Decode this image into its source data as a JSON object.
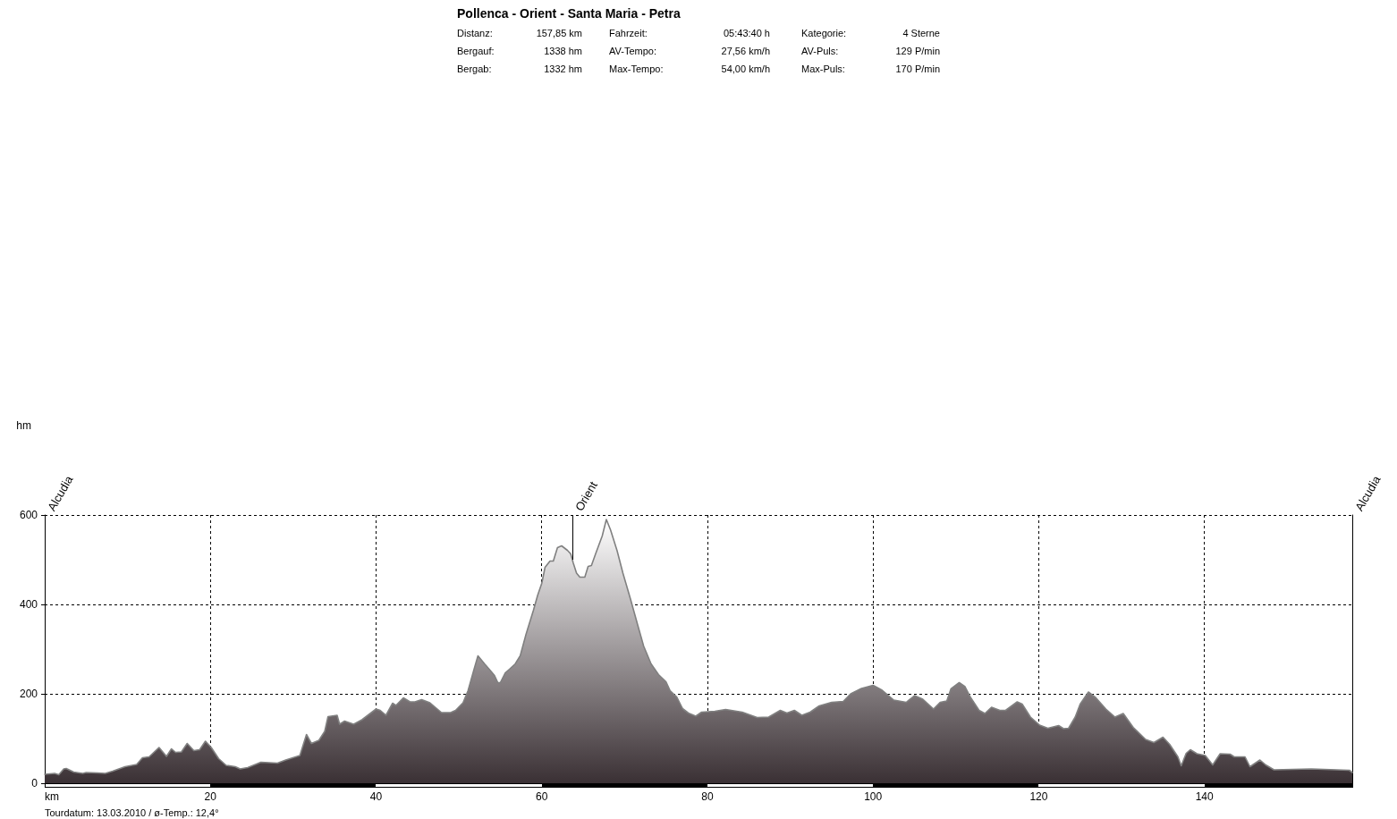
{
  "chart_data": {
    "type": "area",
    "title": "Pollenca - Orient - Santa Maria - Petra",
    "xlabel": "km",
    "x": [
      0,
      1.2,
      1.7,
      2.3,
      2.6,
      3.5,
      4.6,
      5.0,
      6.4,
      7.3,
      8.2,
      9.7,
      11.1,
      11.8,
      12.6,
      13.8,
      14.7,
      15.3,
      15.8,
      16.5,
      17.2,
      18.0,
      18.7,
      19.4,
      20.1,
      21.0,
      21.9,
      23.0,
      23.6,
      24.5,
      26.1,
      28.1,
      29.1,
      30.8,
      31.6,
      32.2,
      33.1,
      33.8,
      34.2,
      35.3,
      35.6,
      36.2,
      37.3,
      38.3,
      40.0,
      40.5,
      41.2,
      42.0,
      42.4,
      43.3,
      44.1,
      44.7,
      45.5,
      46.5,
      47.9,
      49.0,
      49.6,
      50.5,
      51.1,
      51.8,
      52.3,
      53.1,
      53.8,
      54.3,
      54.7,
      55.0,
      55.6,
      56.1,
      56.8,
      57.4,
      58.1,
      59.0,
      59.5,
      60.0,
      60.4,
      61.0,
      61.4,
      61.9,
      62.4,
      63.1,
      63.5,
      63.8,
      64.2,
      64.6,
      65.2,
      65.6,
      66.0,
      66.5,
      67.3,
      67.8,
      68.3,
      69.1,
      69.8,
      70.7,
      71.6,
      72.3,
      73.2,
      74.1,
      75.0,
      75.5,
      76.3,
      77.0,
      77.7,
      78.6,
      79.3,
      80.9,
      82.2,
      84.2,
      86.0,
      87.4,
      88.8,
      89.6,
      90.5,
      91.4,
      92.4,
      93.5,
      95.0,
      96.4,
      97.3,
      98.6,
      100.0,
      101.1,
      102.5,
      104.0,
      105.0,
      106.0,
      107.3,
      108.1,
      108.9,
      109.4,
      110.4,
      111.1,
      111.8,
      112.8,
      113.5,
      114.3,
      115.3,
      116.0,
      117.4,
      118.0,
      119.0,
      120.1,
      121.1,
      122.4,
      123.0,
      123.6,
      124.4,
      125.0,
      126.0,
      126.9,
      128.1,
      129.2,
      130.2,
      131.4,
      132.9,
      133.9,
      135.0,
      135.8,
      136.8,
      137.2,
      137.8,
      138.3,
      139.1,
      140.1,
      141.0,
      141.9,
      143.1,
      143.6,
      144.9,
      145.5,
      146.7,
      147.4,
      148.4,
      152.9,
      157.5,
      157.85
    ],
    "values": [
      20,
      22,
      19,
      32,
      33,
      25,
      22,
      24,
      23,
      22,
      27,
      37,
      42,
      57,
      59,
      80,
      60,
      77,
      69,
      70,
      89,
      73,
      75,
      94,
      80,
      55,
      40,
      37,
      32,
      35,
      47,
      45,
      52,
      62,
      109,
      89,
      96,
      116,
      149,
      152,
      132,
      139,
      132,
      142,
      166,
      163,
      152,
      179,
      174,
      191,
      182,
      182,
      187,
      180,
      158,
      158,
      163,
      180,
      207,
      253,
      285,
      267,
      252,
      241,
      225,
      225,
      247,
      255,
      267,
      285,
      333,
      387,
      420,
      447,
      483,
      497,
      497,
      527,
      531,
      521,
      513,
      493,
      470,
      461,
      461,
      485,
      487,
      513,
      553,
      590,
      567,
      520,
      470,
      413,
      353,
      307,
      267,
      243,
      227,
      207,
      193,
      167,
      157,
      150,
      159,
      161,
      165,
      159,
      147,
      148,
      163,
      157,
      163,
      152,
      159,
      173,
      181,
      183,
      200,
      212,
      219,
      208,
      186,
      181,
      196,
      188,
      166,
      181,
      184,
      211,
      225,
      216,
      191,
      163,
      156,
      170,
      163,
      163,
      182,
      177,
      148,
      130,
      123,
      129,
      122,
      123,
      148,
      177,
      204,
      191,
      166,
      148,
      156,
      125,
      98,
      91,
      103,
      87,
      59,
      39,
      67,
      75,
      66,
      62,
      41,
      66,
      65,
      59,
      59,
      37,
      52,
      41,
      30,
      32,
      29,
      24
    ],
    "color": "#3a3034",
    "xlim": [
      0,
      157.85
    ],
    "ylim": [
      0,
      600
    ],
    "xticks": [
      20,
      40,
      60,
      80,
      100,
      120,
      140
    ],
    "yticks": [
      0,
      200,
      400,
      600
    ],
    "grid": true,
    "annotations": [
      "Distanz: 157,85 km",
      "Fahrzeit: 05:43:40 h",
      "Kategorie: 4 Sterne",
      "Bergauf: 1338 hm",
      "AV-Tempo: 27,56 km/h",
      "AV-Puls: 129 P/min",
      "Bergab: 1332 hm",
      "Max-Tempo: 54,00 km/h",
      "Max-Puls: 170 P/min",
      "hm",
      "Alcudia",
      {
        "text": "Orient",
        "x": 63.7,
        "y": 500
      },
      "Alcudia",
      "Tourdatum: 13.03.2010 / ø-Temp.: 12,4°"
    ]
  }
}
